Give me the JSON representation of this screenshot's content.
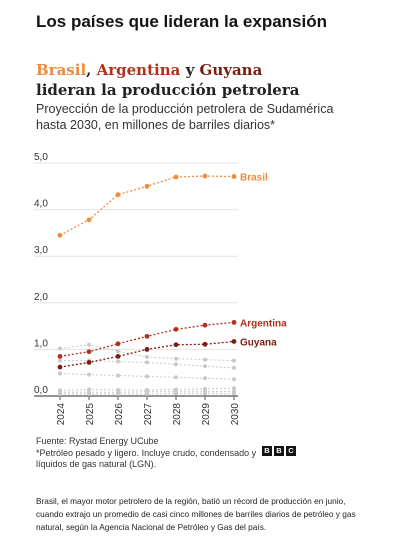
{
  "headline": "Los países que lideran la expansión",
  "title": {
    "brasil": "Brasil",
    "sep1": ", ",
    "argentina": "Argentina",
    "sep2": " y ",
    "guyana": "Guyana",
    "rest": "lideran la producción petrolera"
  },
  "subtitle": "Proyección de la producción petrolera de Sudamérica hasta 2030, en millones de barriles diarios*",
  "source": "Fuente: Rystad Energy UCube",
  "footnote": "*Petróleo pesado y ligero. Incluye crudo, condensado y líquidos de gas natural (LGN).",
  "logo_letters": [
    "B",
    "B",
    "C"
  ],
  "caption": "Brasil, el mayor motor petrolero de la región, batió un récord de producción en junio, cuando extrajo un promedio de casi cinco millones de barriles diarios de petróleo y gas natural, según la Agencia Nacional de Petróleo y Gas del país.",
  "colors": {
    "brasil": "#f08a3c",
    "argentina": "#b0311c",
    "guyana": "#7a1d10",
    "other": "#c9c9c9",
    "grid": "#e3e3e3",
    "axis": "#555555"
  },
  "chart_data": {
    "type": "line",
    "x": [
      "2024",
      "2025",
      "2026",
      "2027",
      "2028",
      "2029",
      "2030"
    ],
    "ylim": [
      0,
      5
    ],
    "yticks": [
      "0,0",
      "1,0",
      "2,0",
      "3,0",
      "4,0",
      "5,0"
    ],
    "grid": true,
    "series": [
      {
        "name": "Brasil",
        "highlight": true,
        "color": "#f08a3c",
        "values": [
          3.45,
          3.78,
          4.32,
          4.5,
          4.7,
          4.72,
          4.71
        ]
      },
      {
        "name": "Argentina",
        "highlight": true,
        "color": "#b0311c",
        "values": [
          0.85,
          0.95,
          1.12,
          1.28,
          1.43,
          1.52,
          1.58
        ]
      },
      {
        "name": "Guyana",
        "highlight": true,
        "color": "#7a1d10",
        "values": [
          0.62,
          0.72,
          0.85,
          1.0,
          1.1,
          1.11,
          1.17
        ]
      },
      {
        "highlight": false,
        "values": [
          1.02,
          1.1,
          0.96,
          0.84,
          0.8,
          0.78,
          0.76
        ]
      },
      {
        "highlight": false,
        "values": [
          0.76,
          0.76,
          0.74,
          0.72,
          0.68,
          0.64,
          0.6
        ]
      },
      {
        "highlight": false,
        "values": [
          0.48,
          0.46,
          0.44,
          0.42,
          0.4,
          0.38,
          0.36
        ]
      },
      {
        "highlight": false,
        "values": [
          0.12,
          0.14,
          0.13,
          0.13,
          0.14,
          0.15,
          0.17
        ]
      },
      {
        "highlight": false,
        "values": [
          0.08,
          0.08,
          0.08,
          0.09,
          0.09,
          0.09,
          0.1
        ]
      },
      {
        "highlight": false,
        "values": [
          0.04,
          0.04,
          0.04,
          0.04,
          0.05,
          0.05,
          0.05
        ]
      }
    ]
  }
}
